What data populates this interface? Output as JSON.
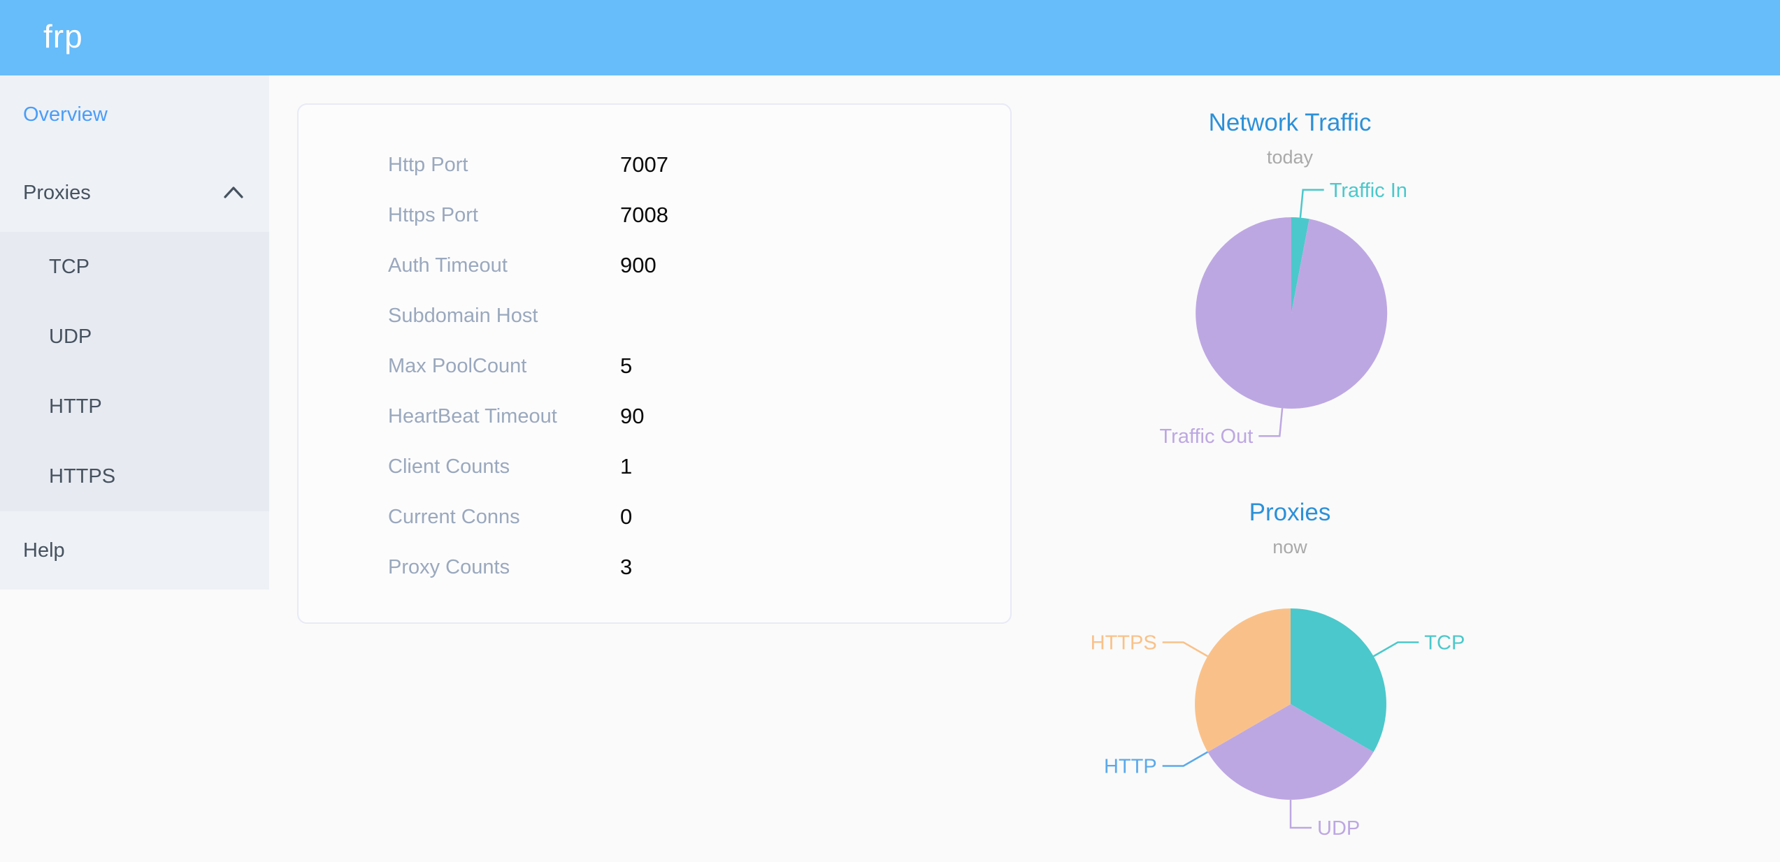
{
  "header": {
    "logo": "frp"
  },
  "sidebar": {
    "items": [
      {
        "label": "Overview",
        "active": true
      },
      {
        "label": "Proxies",
        "expanded": true,
        "children": [
          {
            "label": "TCP"
          },
          {
            "label": "UDP"
          },
          {
            "label": "HTTP"
          },
          {
            "label": "HTTPS"
          }
        ]
      },
      {
        "label": "Help"
      }
    ]
  },
  "overview": {
    "rows": [
      {
        "label": "Http Port",
        "value": "7007"
      },
      {
        "label": "Https Port",
        "value": "7008"
      },
      {
        "label": "Auth Timeout",
        "value": "900"
      },
      {
        "label": "Subdomain Host",
        "value": ""
      },
      {
        "label": "Max PoolCount",
        "value": "5"
      },
      {
        "label": "HeartBeat Timeout",
        "value": "90"
      },
      {
        "label": "Client Counts",
        "value": "1"
      },
      {
        "label": "Current Conns",
        "value": "0"
      },
      {
        "label": "Proxy Counts",
        "value": "3"
      }
    ]
  },
  "chart_data": [
    {
      "type": "pie",
      "title": "Network Traffic",
      "subtitle": "today",
      "legend_position": "callout-labels",
      "series": [
        {
          "name": "Traffic In",
          "value": 3,
          "color": "#4bc8cb"
        },
        {
          "name": "Traffic Out",
          "value": 97,
          "color": "#bda7e2"
        }
      ]
    },
    {
      "type": "pie",
      "title": "Proxies",
      "subtitle": "now",
      "legend_position": "callout-labels",
      "series": [
        {
          "name": "TCP",
          "value": 1,
          "color": "#4bc8cb"
        },
        {
          "name": "UDP",
          "value": 1,
          "color": "#bda7e2"
        },
        {
          "name": "HTTP",
          "value": 0,
          "color": "#5aa9ea"
        },
        {
          "name": "HTTPS",
          "value": 1,
          "color": "#f9c189"
        }
      ]
    }
  ],
  "ui_colors": {
    "header_background": "#67bcfa",
    "sidebar_background": "#eef1f6",
    "submenu_background": "#e7eaf1",
    "active_item": "#4a9df8",
    "chart_title": "#2c90d8"
  }
}
